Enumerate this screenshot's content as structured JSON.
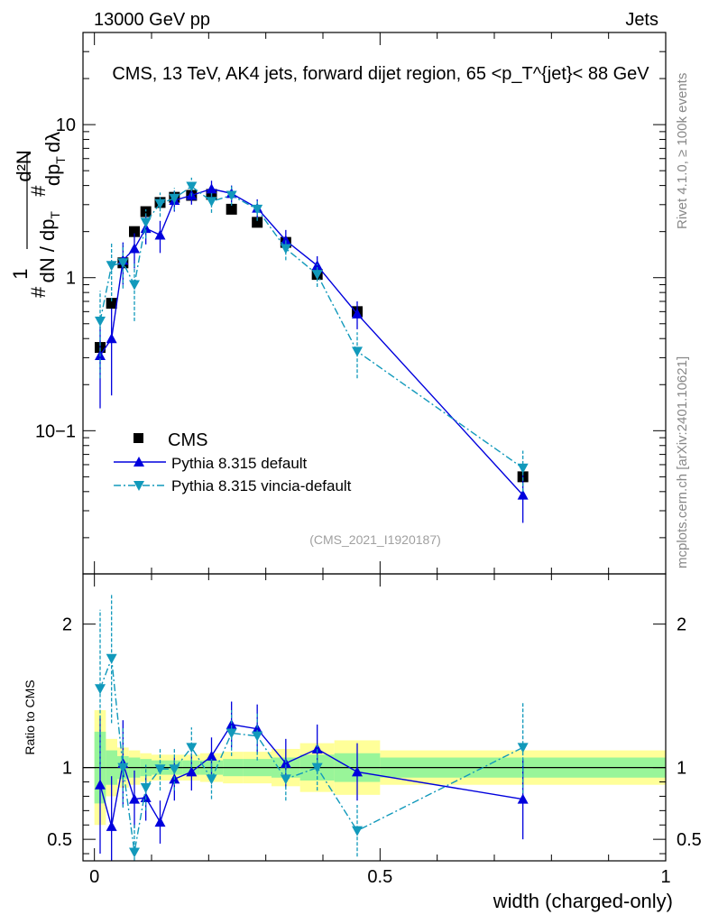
{
  "header": {
    "energy_label": "13000 GeV pp",
    "category_label": "Jets"
  },
  "side_labels": {
    "rivet": "Rivet 4.1.0, ≥ 100k events",
    "source": "mcplots.cern.ch [arXiv:2401.10621]"
  },
  "watermark": "(CMS_2021_I1920187)",
  "legend": {
    "data": "CMS",
    "mc1": "Pythia 8.315 default",
    "mc2": "Pythia 8.315 vincia-default"
  },
  "colors": {
    "data": "#000000",
    "mc1": "#0000dd",
    "mc2": "#1199bb",
    "band_green": "#99f599",
    "band_yellow": "#ffff99"
  },
  "chart_data": [
    {
      "type": "scatter",
      "title": "CMS, 13 TeV, AK4 jets, forward dijet region, 65 <p_T^{jet}< 88 GeV",
      "xlabel": "width (charged-only)",
      "ylabel": "1/dN/dp_T  d²N/(dp_T dλ)",
      "yscale": "log",
      "xlim": [
        -0.02,
        1.0
      ],
      "ylim": [
        0.0116,
        40
      ],
      "x_ticks": [
        0,
        0.5,
        1
      ],
      "y_tick_labels": [
        "10−1",
        "1",
        "10"
      ],
      "y_tick_values": [
        0.1,
        1,
        10
      ],
      "series": [
        {
          "name": "CMS",
          "marker": "square",
          "x": [
            0.01,
            0.03,
            0.05,
            0.07,
            0.09,
            0.115,
            0.14,
            0.17,
            0.205,
            0.24,
            0.285,
            0.335,
            0.39,
            0.46,
            0.75
          ],
          "y": [
            0.35,
            0.68,
            1.25,
            2.0,
            2.7,
            3.1,
            3.35,
            3.45,
            3.5,
            2.8,
            2.3,
            1.7,
            1.05,
            0.6,
            0.05
          ]
        },
        {
          "name": "Pythia 8.315 default",
          "marker": "triangle-up",
          "x": [
            0.01,
            0.03,
            0.05,
            0.07,
            0.09,
            0.115,
            0.14,
            0.17,
            0.205,
            0.24,
            0.285,
            0.335,
            0.39,
            0.46,
            0.75
          ],
          "y": [
            0.31,
            0.4,
            1.3,
            1.55,
            2.1,
            1.9,
            3.2,
            3.45,
            3.8,
            3.55,
            2.85,
            1.75,
            1.2,
            0.58,
            0.038
          ],
          "err": [
            0.17,
            0.23,
            0.4,
            0.4,
            0.45,
            0.45,
            0.5,
            0.45,
            0.5,
            0.45,
            0.4,
            0.3,
            0.18,
            0.12,
            0.013
          ]
        },
        {
          "name": "Pythia 8.315 vincia-default",
          "marker": "triangle-down",
          "x": [
            0.01,
            0.03,
            0.05,
            0.07,
            0.09,
            0.115,
            0.14,
            0.17,
            0.205,
            0.24,
            0.285,
            0.335,
            0.39,
            0.46,
            0.75
          ],
          "y": [
            0.52,
            1.2,
            1.25,
            0.9,
            2.3,
            3.05,
            3.3,
            3.95,
            3.15,
            3.45,
            2.8,
            1.55,
            1.05,
            0.33,
            0.057
          ],
          "err": [
            0.3,
            0.5,
            0.4,
            0.38,
            0.5,
            0.55,
            0.55,
            0.55,
            0.5,
            0.5,
            0.45,
            0.25,
            0.18,
            0.11,
            0.017
          ]
        }
      ]
    },
    {
      "type": "scatter",
      "title": "",
      "xlabel": "width (charged-only)",
      "ylabel": "Ratio to CMS",
      "xlim": [
        -0.02,
        1.0
      ],
      "ylim": [
        0.35,
        2.35
      ],
      "x_ticks": [
        0,
        0.5,
        1
      ],
      "x_tick_labels": [
        "0",
        "0.5",
        "1"
      ],
      "y_ticks": [
        0.5,
        1,
        2
      ],
      "y_tick_labels": [
        "0.5",
        "1",
        "2"
      ],
      "bins": [
        [
          0,
          0.02
        ],
        [
          0.02,
          0.04
        ],
        [
          0.04,
          0.06
        ],
        [
          0.06,
          0.08
        ],
        [
          0.08,
          0.1
        ],
        [
          0.1,
          0.13
        ],
        [
          0.13,
          0.155
        ],
        [
          0.155,
          0.185
        ],
        [
          0.185,
          0.225
        ],
        [
          0.225,
          0.26
        ],
        [
          0.26,
          0.31
        ],
        [
          0.31,
          0.36
        ],
        [
          0.36,
          0.42
        ],
        [
          0.42,
          0.5
        ],
        [
          0.5,
          1.0
        ]
      ],
      "band_inner": [
        0.25,
        0.12,
        0.08,
        0.07,
        0.06,
        0.05,
        0.05,
        0.05,
        0.05,
        0.06,
        0.06,
        0.07,
        0.09,
        0.1,
        0.07
      ],
      "band_outer": [
        0.4,
        0.2,
        0.14,
        0.12,
        0.1,
        0.09,
        0.09,
        0.09,
        0.1,
        0.11,
        0.11,
        0.13,
        0.17,
        0.19,
        0.12
      ],
      "series": [
        {
          "name": "Pythia 8.315 default",
          "marker": "triangle-up",
          "x": [
            0.01,
            0.03,
            0.05,
            0.07,
            0.09,
            0.115,
            0.14,
            0.17,
            0.205,
            0.24,
            0.285,
            0.335,
            0.39,
            0.46,
            0.75
          ],
          "y": [
            0.88,
            0.59,
            1.03,
            0.78,
            0.79,
            0.62,
            0.92,
            0.97,
            1.08,
            1.3,
            1.27,
            1.03,
            1.13,
            0.97,
            0.78
          ],
          "err": [
            0.48,
            0.35,
            0.3,
            0.2,
            0.16,
            0.15,
            0.15,
            0.13,
            0.13,
            0.16,
            0.17,
            0.17,
            0.17,
            0.2,
            0.28
          ]
        },
        {
          "name": "Pythia 8.315 vincia-default",
          "marker": "triangle-down",
          "x": [
            0.01,
            0.03,
            0.05,
            0.07,
            0.09,
            0.115,
            0.14,
            0.17,
            0.205,
            0.24,
            0.285,
            0.335,
            0.39,
            0.46,
            0.75
          ],
          "y": [
            1.55,
            1.76,
            1.0,
            0.41,
            0.86,
            0.99,
            0.99,
            1.14,
            0.92,
            1.24,
            1.22,
            0.92,
            1.0,
            0.56,
            1.14
          ],
          "err": [
            0.55,
            0.45,
            0.28,
            0.2,
            0.16,
            0.15,
            0.15,
            0.14,
            0.14,
            0.16,
            0.17,
            0.15,
            0.16,
            0.18,
            0.32
          ]
        }
      ]
    }
  ]
}
